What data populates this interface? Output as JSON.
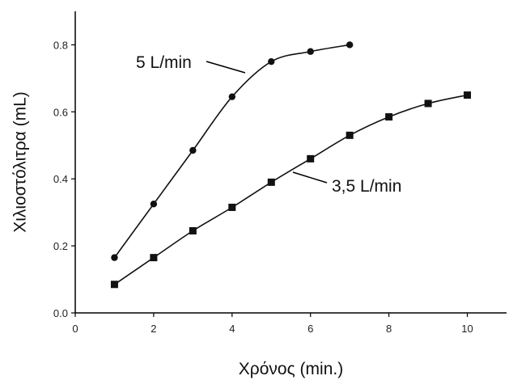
{
  "chart_data": {
    "type": "line",
    "title": "",
    "xlabel": "Χρόνος (min.)",
    "ylabel": "Χιλιοστόλιτρα (mL)",
    "xlim": [
      0,
      11
    ],
    "ylim": [
      0,
      0.9
    ],
    "x_ticks": [
      "0",
      "2",
      "4",
      "6",
      "8",
      "10"
    ],
    "y_ticks": [
      "0.0",
      "0.2",
      "0.4",
      "0.6",
      "0.8"
    ],
    "grid": false,
    "legend": "none",
    "series": [
      {
        "name": "5 L/min",
        "marker": "circle",
        "color": "#111111",
        "x": [
          1,
          2,
          3,
          4,
          5,
          6,
          7
        ],
        "y": [
          0.165,
          0.325,
          0.485,
          0.645,
          0.75,
          0.78,
          0.8
        ]
      },
      {
        "name": "3,5 L/min",
        "marker": "square",
        "color": "#111111",
        "x": [
          1,
          2,
          3,
          4,
          5,
          6,
          7,
          8,
          9,
          10
        ],
        "y": [
          0.085,
          0.165,
          0.245,
          0.315,
          0.39,
          0.46,
          0.53,
          0.585,
          0.625,
          0.65
        ]
      }
    ]
  }
}
